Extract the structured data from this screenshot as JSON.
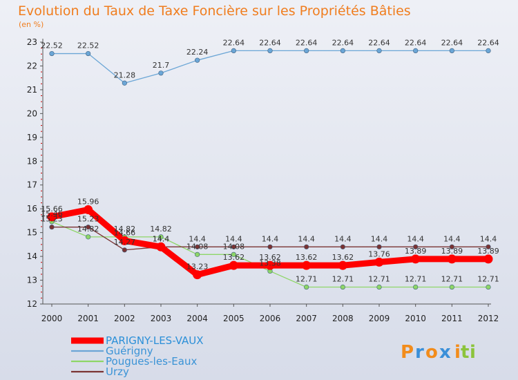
{
  "chart_data": {
    "type": "line",
    "title": "Evolution du Taux de Taxe Foncière sur les Propriétés Bâties",
    "unit_label": "(en %)",
    "xlabel": "",
    "ylabel": "",
    "x": [
      "2000",
      "2001",
      "2002",
      "2003",
      "2004",
      "2005",
      "2006",
      "2007",
      "2008",
      "2009",
      "2010",
      "2011",
      "2012"
    ],
    "ylim": [
      12,
      23
    ],
    "yticks": [
      12,
      13,
      14,
      15,
      16,
      17,
      18,
      19,
      20,
      21,
      22,
      23
    ],
    "grid": false,
    "legend_position": "bottom-left",
    "series": [
      {
        "name": "PARIGNY-LES-VAUX",
        "color": "#ff0000",
        "values": [
          15.66,
          15.96,
          14.66,
          14.4,
          13.23,
          13.62,
          13.62,
          13.62,
          13.62,
          13.76,
          13.89,
          13.89,
          13.89
        ],
        "labels": [
          "15.66",
          "15.96",
          "14.66",
          "14.4",
          "13.23",
          "13.62",
          "13.62",
          "13.62",
          "13.62",
          "13.76",
          "13.89",
          "13.89",
          "13.89"
        ]
      },
      {
        "name": "Guérigny",
        "color": "#6ba6d6",
        "values": [
          22.52,
          22.52,
          21.28,
          21.7,
          22.24,
          22.64,
          22.64,
          22.64,
          22.64,
          22.64,
          22.64,
          22.64,
          22.64
        ],
        "labels": [
          "22.52",
          "22.52",
          "21.28",
          "21.7",
          "22.24",
          "22.64",
          "22.64",
          "22.64",
          "22.64",
          "22.64",
          "22.64",
          "22.64",
          "22.64"
        ]
      },
      {
        "name": "Pougues-les-Eaux",
        "color": "#8ed667",
        "values": [
          15.46,
          14.82,
          14.82,
          14.82,
          14.08,
          14.08,
          13.38,
          12.71,
          12.71,
          12.71,
          12.71,
          12.71,
          12.71
        ],
        "labels": [
          "15.46",
          "14.82",
          "14.82",
          "14.82",
          "14.08",
          "14.08",
          "13.38",
          "12.71",
          "12.71",
          "12.71",
          "12.71",
          "12.71",
          "12.71"
        ]
      },
      {
        "name": "Urzy",
        "color": "#7a3333",
        "values": [
          15.23,
          15.23,
          14.27,
          14.4,
          14.4,
          14.4,
          14.4,
          14.4,
          14.4,
          14.4,
          14.4,
          14.4,
          14.4
        ],
        "labels": [
          "15.23",
          "15.23",
          "14.27",
          "14.4",
          "14.4",
          "14.4",
          "14.4",
          "14.4",
          "14.4",
          "14.4",
          "14.4",
          "14.4",
          "14.4"
        ]
      }
    ]
  },
  "branding": {
    "logo_text": "Proxiti",
    "letters": [
      "P",
      "r",
      "o",
      "x",
      "i",
      "t",
      "i"
    ],
    "letter_colors": [
      "#f28c1b",
      "#3a8fd8",
      "#f28c1b",
      "#3a8fd8",
      "#f28c1b",
      "#8cc43c",
      "#8cc43c"
    ]
  }
}
